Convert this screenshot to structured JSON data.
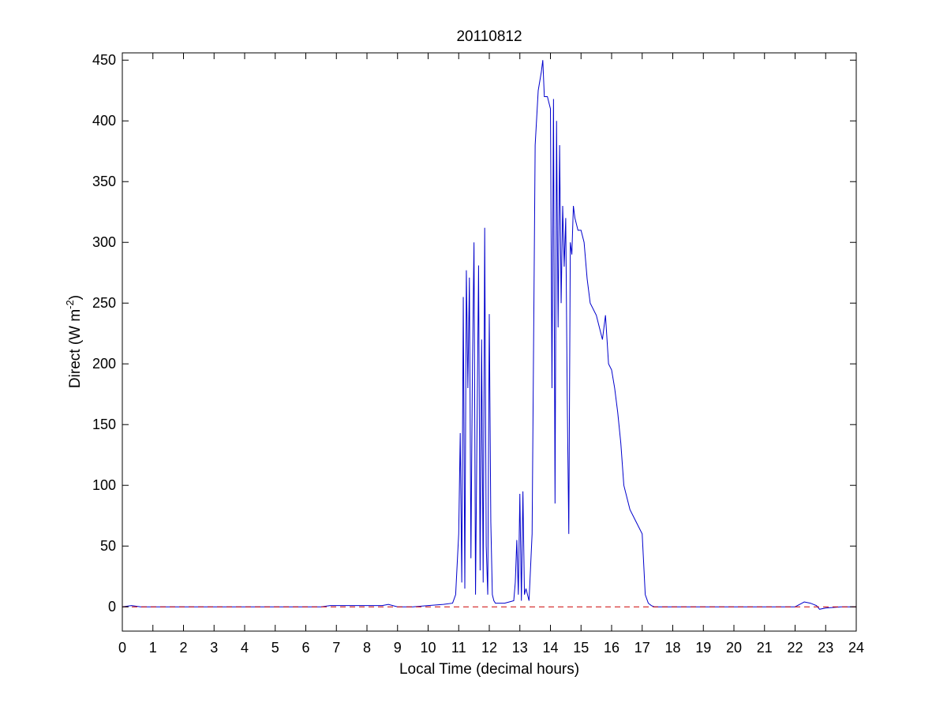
{
  "chart_data": {
    "type": "line",
    "title": "20110812",
    "xlabel": "Local Time (decimal hours)",
    "ylabel": {
      "main": "Direct (W m",
      "superscript": "-2",
      "suffix": ")"
    },
    "xlim": [
      0,
      24
    ],
    "ylim": [
      -20,
      456
    ],
    "x_ticks": [
      0,
      1,
      2,
      3,
      4,
      5,
      6,
      7,
      8,
      9,
      10,
      11,
      12,
      13,
      14,
      15,
      16,
      17,
      18,
      19,
      20,
      21,
      22,
      23,
      24
    ],
    "y_ticks": [
      0,
      50,
      100,
      150,
      200,
      250,
      300,
      350,
      400,
      450
    ],
    "grid": false,
    "box": true,
    "series": [
      {
        "color": "#0000cc",
        "style": "solid",
        "x": [
          0,
          0.3,
          0.6,
          1.0,
          3.0,
          6.5,
          6.8,
          7.5,
          8.5,
          8.7,
          9.0,
          9.5,
          10.0,
          10.5,
          10.8,
          10.9,
          11.0,
          11.05,
          11.1,
          11.15,
          11.2,
          11.25,
          11.3,
          11.35,
          11.4,
          11.45,
          11.5,
          11.55,
          11.6,
          11.65,
          11.7,
          11.75,
          11.8,
          11.85,
          11.9,
          11.95,
          12.0,
          12.05,
          12.1,
          12.15,
          12.2,
          12.5,
          12.8,
          12.85,
          12.9,
          12.95,
          13.0,
          13.05,
          13.1,
          13.15,
          13.2,
          13.3,
          13.4,
          13.5,
          13.6,
          13.7,
          13.75,
          13.8,
          13.9,
          14.0,
          14.05,
          14.1,
          14.15,
          14.2,
          14.25,
          14.3,
          14.35,
          14.4,
          14.45,
          14.5,
          14.55,
          14.6,
          14.65,
          14.7,
          14.75,
          14.8,
          14.9,
          15.0,
          15.1,
          15.2,
          15.3,
          15.5,
          15.6,
          15.7,
          15.8,
          15.9,
          16.0,
          16.1,
          16.2,
          16.3,
          16.4,
          16.5,
          16.6,
          16.8,
          17.0,
          17.1,
          17.2,
          17.3,
          17.4,
          17.6,
          18.0,
          20.0,
          22.0,
          22.3,
          22.5,
          22.7,
          22.8,
          23.0,
          23.5,
          24.0
        ],
        "y": [
          0,
          1,
          0,
          0,
          0,
          0,
          1,
          1,
          1,
          2,
          0,
          0,
          1,
          2,
          3,
          10,
          60,
          143,
          20,
          255,
          15,
          277,
          180,
          271,
          40,
          200,
          300,
          10,
          150,
          281,
          30,
          220,
          20,
          312,
          50,
          10,
          241,
          70,
          10,
          5,
          3,
          3,
          5,
          20,
          55,
          10,
          93,
          5,
          95,
          10,
          15,
          5,
          60,
          380,
          425,
          440,
          450,
          420,
          420,
          410,
          180,
          418,
          85,
          400,
          230,
          380,
          250,
          330,
          280,
          320,
          170,
          60,
          300,
          290,
          330,
          320,
          310,
          310,
          300,
          270,
          250,
          240,
          230,
          220,
          240,
          200,
          195,
          180,
          160,
          135,
          100,
          90,
          80,
          70,
          60,
          10,
          3,
          1,
          0,
          0,
          0,
          0,
          0,
          4,
          3,
          1,
          -2,
          -1,
          0,
          0
        ]
      },
      {
        "color": "#cc0000",
        "style": "dashed",
        "x": [
          0,
          24
        ],
        "y": [
          0,
          0
        ]
      }
    ]
  }
}
